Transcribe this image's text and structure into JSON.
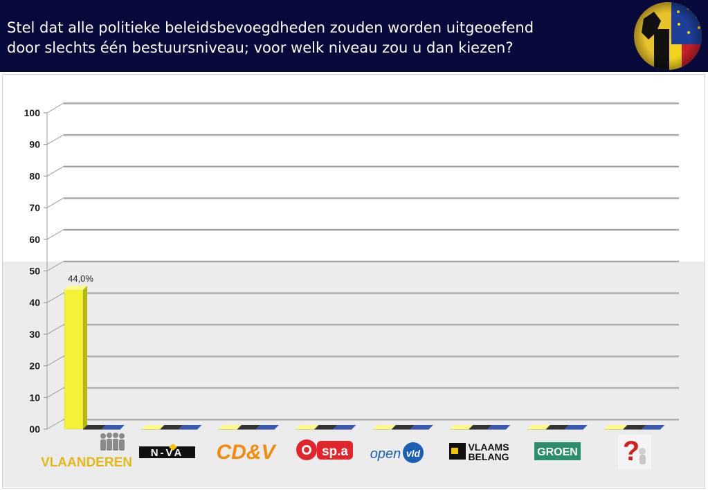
{
  "header": {
    "title_line1": "Stel dat alle politieke beleidsbevoegdheden zouden worden uitgeoefend",
    "title_line2": "door slechts één bestuursniveau; voor welk niveau zou u dan kiezen?"
  },
  "colors": {
    "header_bg": "#07093a",
    "series_yellow": "#f4f235",
    "series_black": "#111111",
    "series_blue": "#1c3a8c"
  },
  "chart_data": {
    "type": "bar",
    "title": "",
    "xlabel": "",
    "ylabel": "",
    "ylim": [
      0,
      100
    ],
    "y_ticks": [
      "00",
      "10",
      "20",
      "30",
      "40",
      "50",
      "60",
      "70",
      "80",
      "90",
      "100"
    ],
    "grid": true,
    "legend": "none",
    "categories": [
      "Vlaanderen",
      "N-VA",
      "CD&V",
      "sp.a",
      "open vld",
      "Vlaams Belang",
      "Groen",
      "?"
    ],
    "series": [
      {
        "values": [
          44.0,
          0,
          0,
          0,
          0,
          0,
          0,
          0
        ],
        "color": "#f4f235"
      },
      {
        "values": [
          0,
          0,
          0,
          0,
          0,
          0,
          0,
          0
        ],
        "color": "#111111"
      },
      {
        "values": [
          0,
          0,
          0,
          0,
          0,
          0,
          0,
          0
        ],
        "color": "#1c3a8c"
      }
    ],
    "data_labels": [
      "44,0%"
    ]
  },
  "logos": {
    "vlaanderen": "VLAANDEREN",
    "nva": "N-VA",
    "cdv": "CD&V",
    "spa": "sp.a",
    "openvld_open": "open",
    "openvld_vld": "vld",
    "vb_line1": "VLAAMS",
    "vb_line2": "BELANG",
    "groen": "GROEN",
    "unknown": "?"
  }
}
